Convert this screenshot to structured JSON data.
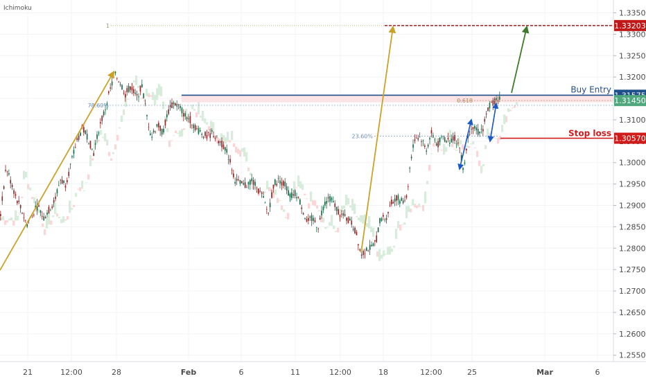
{
  "indicator_label": "Ichimoku",
  "chart_data": {
    "type": "candlestick",
    "title": "",
    "xlabel": "",
    "ylabel": "",
    "ylim": [
      1.2535,
      1.338
    ],
    "y_ticks": [
      "1.33500",
      "1.33000",
      "1.32500",
      "1.32000",
      "1.31500",
      "1.31000",
      "1.30500",
      "1.30000",
      "1.29500",
      "1.29000",
      "1.28500",
      "1.28000",
      "1.27500",
      "1.27000",
      "1.26500",
      "1.26000",
      "1.25500"
    ],
    "x_ticks": [
      {
        "label": "21",
        "t": 40
      },
      {
        "label": "12:00",
        "t": 103
      },
      {
        "label": "28",
        "t": 168
      },
      {
        "label": "Feb",
        "t": 272
      },
      {
        "label": "6",
        "t": 348
      },
      {
        "label": "11",
        "t": 426
      },
      {
        "label": "12:00",
        "t": 491
      },
      {
        "label": "18",
        "t": 553
      },
      {
        "label": "12:00",
        "t": 622
      },
      {
        "label": "25",
        "t": 681
      },
      {
        "label": "Mar",
        "t": 786
      },
      {
        "label": "6",
        "t": 862
      }
    ],
    "price_path": [
      [
        0,
        1.288
      ],
      [
        8,
        1.299
      ],
      [
        14,
        1.296
      ],
      [
        22,
        1.292
      ],
      [
        30,
        1.289
      ],
      [
        38,
        1.2855
      ],
      [
        46,
        1.288
      ],
      [
        54,
        1.29
      ],
      [
        62,
        1.287
      ],
      [
        70,
        1.289
      ],
      [
        78,
        1.291
      ],
      [
        86,
        1.296
      ],
      [
        94,
        1.295
      ],
      [
        102,
        1.3
      ],
      [
        110,
        1.305
      ],
      [
        118,
        1.308
      ],
      [
        126,
        1.306
      ],
      [
        134,
        1.302
      ],
      [
        142,
        1.308
      ],
      [
        150,
        1.312
      ],
      [
        158,
        1.317
      ],
      [
        165,
        1.3205
      ],
      [
        172,
        1.319
      ],
      [
        180,
        1.316
      ],
      [
        188,
        1.318
      ],
      [
        196,
        1.315
      ],
      [
        204,
        1.318
      ],
      [
        212,
        1.31
      ],
      [
        218,
        1.306
      ],
      [
        226,
        1.309
      ],
      [
        234,
        1.307
      ],
      [
        242,
        1.312
      ],
      [
        250,
        1.314
      ],
      [
        258,
        1.313
      ],
      [
        266,
        1.311
      ],
      [
        274,
        1.31
      ],
      [
        282,
        1.308
      ],
      [
        290,
        1.307
      ],
      [
        298,
        1.306
      ],
      [
        306,
        1.307
      ],
      [
        314,
        1.305
      ],
      [
        322,
        1.304
      ],
      [
        330,
        1.301
      ],
      [
        338,
        1.296
      ],
      [
        346,
        1.295
      ],
      [
        354,
        1.2945
      ],
      [
        362,
        1.296
      ],
      [
        370,
        1.294
      ],
      [
        378,
        1.292
      ],
      [
        386,
        1.288
      ],
      [
        394,
        1.295
      ],
      [
        402,
        1.296
      ],
      [
        410,
        1.295
      ],
      [
        418,
        1.292
      ],
      [
        426,
        1.293
      ],
      [
        434,
        1.29
      ],
      [
        442,
        1.286
      ],
      [
        450,
        1.287
      ],
      [
        458,
        1.285
      ],
      [
        466,
        1.29
      ],
      [
        474,
        1.292
      ],
      [
        482,
        1.29
      ],
      [
        490,
        1.288
      ],
      [
        498,
        1.287
      ],
      [
        506,
        1.286
      ],
      [
        514,
        1.283
      ],
      [
        520,
        1.2785
      ],
      [
        528,
        1.28
      ],
      [
        536,
        1.28
      ],
      [
        542,
        1.282
      ],
      [
        548,
        1.287
      ],
      [
        556,
        1.287
      ],
      [
        562,
        1.29
      ],
      [
        570,
        1.292
      ],
      [
        578,
        1.291
      ],
      [
        586,
        1.292
      ],
      [
        592,
        1.301
      ],
      [
        598,
        1.306
      ],
      [
        606,
        1.306
      ],
      [
        614,
        1.303
      ],
      [
        622,
        1.307
      ],
      [
        630,
        1.304
      ],
      [
        638,
        1.306
      ],
      [
        646,
        1.305
      ],
      [
        654,
        1.306
      ],
      [
        662,
        1.304
      ],
      [
        668,
        1.298
      ],
      [
        674,
        1.306
      ],
      [
        680,
        1.309
      ],
      [
        688,
        1.307
      ],
      [
        696,
        1.308
      ],
      [
        704,
        1.313
      ],
      [
        710,
        1.314
      ],
      [
        716,
        1.315
      ]
    ],
    "levels": {
      "buy_entry": {
        "label": "Buy Entry",
        "price_label": "1.31575",
        "value": 1.31575,
        "color": "#1e4f8a"
      },
      "fib_618": {
        "label": "1.31450",
        "value": 1.3145,
        "color": "#4fa77d"
      },
      "stop_loss": {
        "label": "Stop loss",
        "price_label": "1.30570",
        "value": 1.3057,
        "color": "#d01b1b"
      },
      "take_profit": {
        "label": "1.33203",
        "value": 1.33203,
        "color": "#c01818"
      }
    },
    "annotations": {
      "fib_1": "1",
      "fib_786": "78.60%",
      "fib_618_text": "0.618",
      "fib_236": "23.60%"
    }
  }
}
